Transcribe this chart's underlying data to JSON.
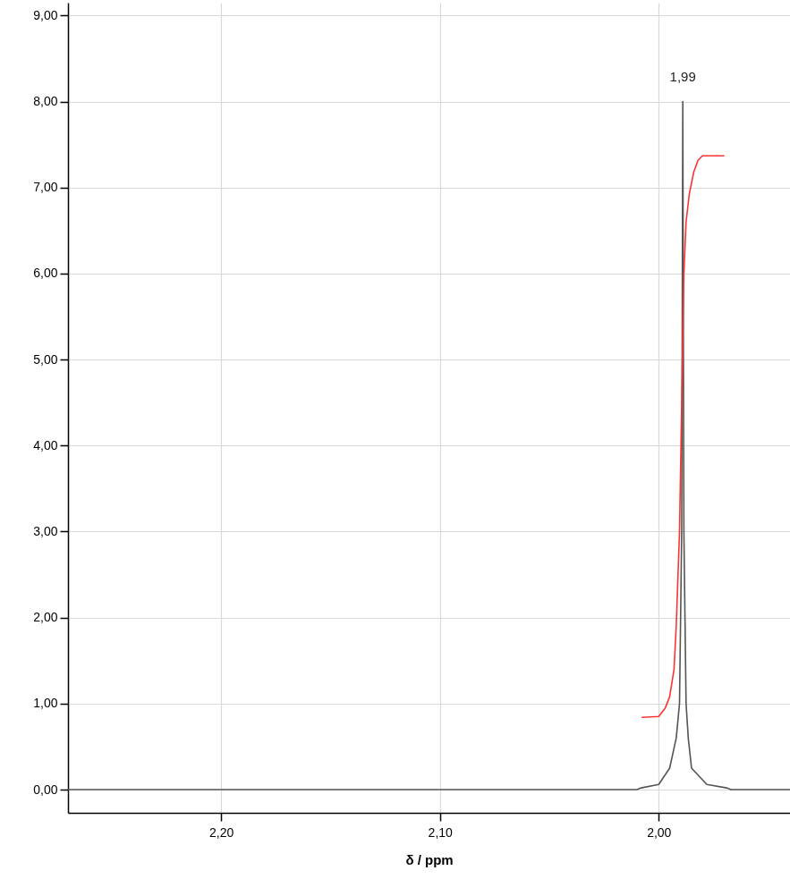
{
  "chart_data": {
    "type": "line",
    "xlabel": "δ / ppm",
    "xlim": [
      2.27,
      1.94
    ],
    "ylim": [
      -0.27,
      9.15
    ],
    "xticks": [
      {
        "value": 2.2,
        "label": "2,20"
      },
      {
        "value": 2.1,
        "label": "2,10"
      },
      {
        "value": 2.0,
        "label": "2,00"
      }
    ],
    "yticks": [
      {
        "value": 0,
        "label": "0,00"
      },
      {
        "value": 1,
        "label": "1,00"
      },
      {
        "value": 2,
        "label": "2,00"
      },
      {
        "value": 3,
        "label": "3,00"
      },
      {
        "value": 4,
        "label": "4,00"
      },
      {
        "value": 5,
        "label": "5,00"
      },
      {
        "value": 6,
        "label": "6,00"
      },
      {
        "value": 7,
        "label": "7,00"
      },
      {
        "value": 8,
        "label": "8,00"
      },
      {
        "value": 9,
        "label": "9,00"
      }
    ],
    "grid": true,
    "series": [
      {
        "color": "#555555",
        "x": [
          2.27,
          2.01,
          2.008,
          2.0,
          1.995,
          1.992,
          1.9905,
          1.9895,
          1.989,
          1.9885,
          1.9875,
          1.9865,
          1.985,
          1.978,
          1.969,
          1.967,
          1.94
        ],
        "values": [
          0,
          0,
          0.02,
          0.06,
          0.25,
          0.6,
          1.0,
          3.0,
          8.0,
          3.0,
          1.0,
          0.6,
          0.25,
          0.06,
          0.02,
          0,
          0
        ]
      },
      {
        "color": "#ff3333",
        "x": [
          2.0078,
          2.0,
          1.997,
          1.995,
          1.993,
          1.992,
          1.9905,
          1.9895,
          1.9885,
          1.9875,
          1.986,
          1.984,
          1.982,
          1.98,
          1.97
        ],
        "values": [
          0.84,
          0.85,
          0.95,
          1.08,
          1.4,
          1.9,
          3.0,
          4.5,
          6.0,
          6.6,
          6.93,
          7.18,
          7.32,
          7.37,
          7.37
        ]
      }
    ],
    "annotations": [
      {
        "text": "1,99",
        "x": 1.989,
        "y": 8.0
      }
    ]
  }
}
